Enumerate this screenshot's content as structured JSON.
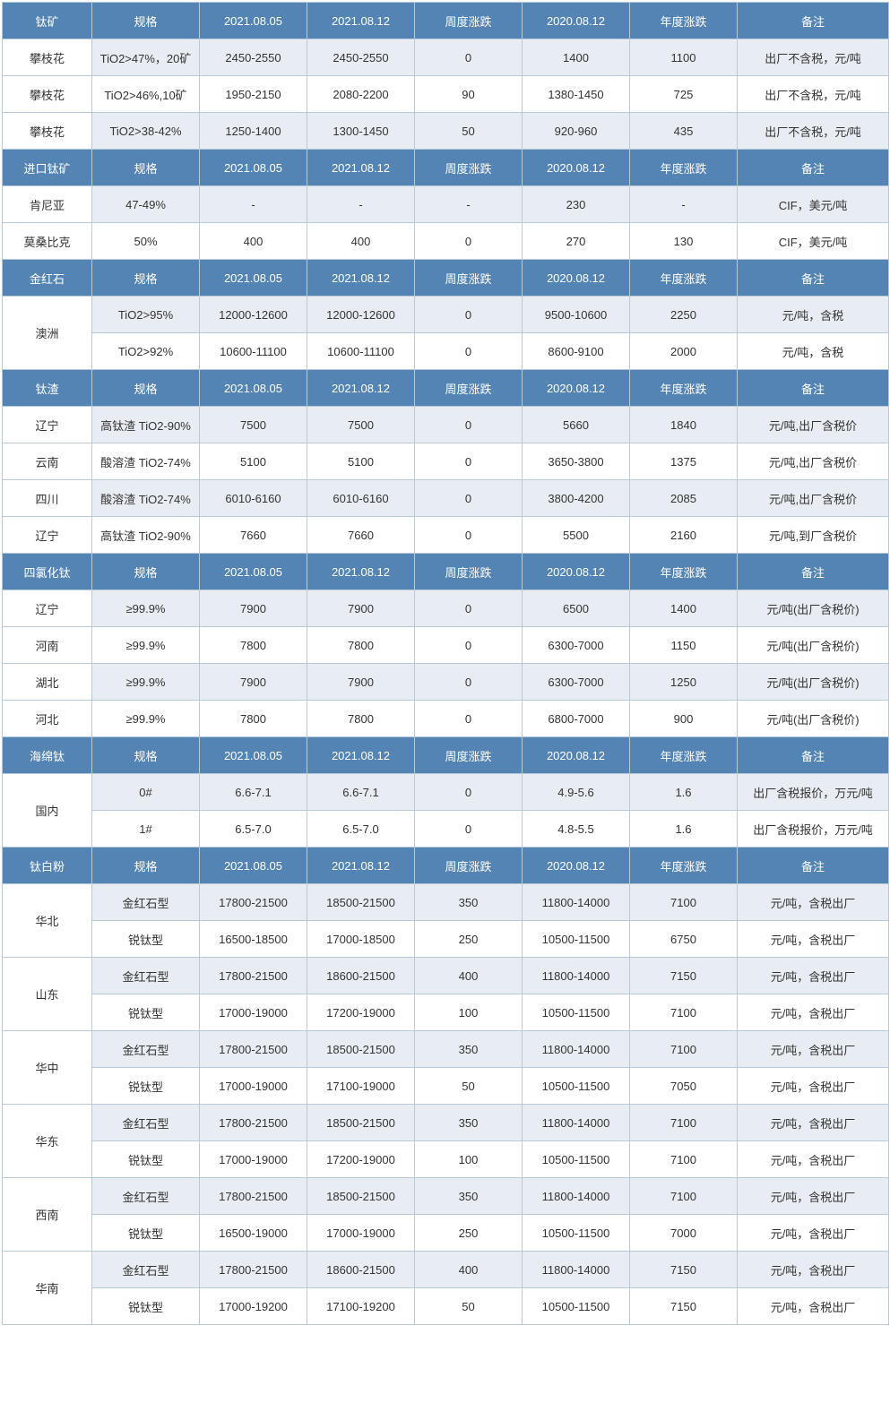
{
  "headers": [
    "规格",
    "2021.08.05",
    "2021.08.12",
    "周度涨跌",
    "2020.08.12",
    "年度涨跌",
    "备注"
  ],
  "sections": [
    {
      "title": "钛矿",
      "rows": [
        {
          "name": "攀枝花",
          "merged": false,
          "cells": [
            "TiO2>47%，20矿",
            "2450-2550",
            "2450-2550",
            "0",
            "1400",
            "1100",
            "出厂不含税，元/吨"
          ],
          "alt": true
        },
        {
          "name": "攀枝花",
          "merged": false,
          "cells": [
            "TiO2>46%,10矿",
            "1950-2150",
            "2080-2200",
            "90",
            "1380-1450",
            "725",
            "出厂不含税，元/吨"
          ],
          "alt": false
        },
        {
          "name": "攀枝花",
          "merged": false,
          "cells": [
            "TiO2>38-42%",
            "1250-1400",
            "1300-1450",
            "50",
            "920-960",
            "435",
            "出厂不含税，元/吨"
          ],
          "alt": true
        }
      ]
    },
    {
      "title": "进口钛矿",
      "rows": [
        {
          "name": "肯尼亚",
          "merged": false,
          "cells": [
            "47-49%",
            "-",
            "-",
            "-",
            "230",
            "-",
            "CIF，美元/吨"
          ],
          "alt": true
        },
        {
          "name": "莫桑比克",
          "merged": false,
          "cells": [
            "50%",
            "400",
            "400",
            "0",
            "270",
            "130",
            "CIF，美元/吨"
          ],
          "alt": false
        }
      ]
    },
    {
      "title": "金红石",
      "rows": [
        {
          "name": "澳洲",
          "merged": true,
          "span": 2,
          "cells": [
            "TiO2>95%",
            "12000-12600",
            "12000-12600",
            "0",
            "9500-10600",
            "2250",
            "元/吨，含税"
          ],
          "alt": true
        },
        {
          "name": "",
          "merged": false,
          "cells": [
            "TiO2>92%",
            "10600-11100",
            "10600-11100",
            "0",
            "8600-9100",
            "2000",
            "元/吨，含税"
          ],
          "alt": false,
          "skip_first": true
        }
      ]
    },
    {
      "title": "钛渣",
      "rows": [
        {
          "name": "辽宁",
          "merged": false,
          "cells": [
            "高钛渣 TiO2-90%",
            "7500",
            "7500",
            "0",
            "5660",
            "1840",
            "元/吨,出厂含税价"
          ],
          "alt": true
        },
        {
          "name": "云南",
          "merged": false,
          "cells": [
            "酸溶渣 TiO2-74%",
            "5100",
            "5100",
            "0",
            "3650-3800",
            "1375",
            "元/吨,出厂含税价"
          ],
          "alt": false
        },
        {
          "name": "四川",
          "merged": false,
          "cells": [
            "酸溶渣 TiO2-74%",
            "6010-6160",
            "6010-6160",
            "0",
            "3800-4200",
            "2085",
            "元/吨,出厂含税价"
          ],
          "alt": true
        },
        {
          "name": "辽宁",
          "merged": false,
          "cells": [
            "高钛渣 TiO2-90%",
            "7660",
            "7660",
            "0",
            "5500",
            "2160",
            "元/吨,到厂含税价"
          ],
          "alt": false
        }
      ]
    },
    {
      "title": "四氯化钛",
      "rows": [
        {
          "name": "辽宁",
          "merged": false,
          "cells": [
            "≥99.9%",
            "7900",
            "7900",
            "0",
            "6500",
            "1400",
            "元/吨(出厂含税价)"
          ],
          "alt": true
        },
        {
          "name": "河南",
          "merged": false,
          "cells": [
            "≥99.9%",
            "7800",
            "7800",
            "0",
            "6300-7000",
            "1150",
            "元/吨(出厂含税价)"
          ],
          "alt": false
        },
        {
          "name": "湖北",
          "merged": false,
          "cells": [
            "≥99.9%",
            "7900",
            "7900",
            "0",
            "6300-7000",
            "1250",
            "元/吨(出厂含税价)"
          ],
          "alt": true
        },
        {
          "name": "河北",
          "merged": false,
          "cells": [
            "≥99.9%",
            "7800",
            "7800",
            "0",
            "6800-7000",
            "900",
            "元/吨(出厂含税价)"
          ],
          "alt": false
        }
      ]
    },
    {
      "title": "海绵钛",
      "rows": [
        {
          "name": "国内",
          "merged": true,
          "span": 2,
          "cells": [
            "0#",
            "6.6-7.1",
            "6.6-7.1",
            "0",
            "4.9-5.6",
            "1.6",
            "出厂含税报价，万元/吨"
          ],
          "alt": true
        },
        {
          "name": "",
          "merged": false,
          "cells": [
            "1#",
            "6.5-7.0",
            "6.5-7.0",
            "0",
            "4.8-5.5",
            "1.6",
            "出厂含税报价，万元/吨"
          ],
          "alt": false,
          "skip_first": true
        }
      ]
    },
    {
      "title": "钛白粉",
      "rows": [
        {
          "name": "华北",
          "merged": true,
          "span": 2,
          "cells": [
            "金红石型",
            "17800-21500",
            "18500-21500",
            "350",
            "11800-14000",
            "7100",
            "元/吨，含税出厂"
          ],
          "alt": true
        },
        {
          "name": "",
          "merged": false,
          "cells": [
            "锐钛型",
            "16500-18500",
            "17000-18500",
            "250",
            "10500-11500",
            "6750",
            "元/吨，含税出厂"
          ],
          "alt": false,
          "skip_first": true
        },
        {
          "name": "山东",
          "merged": true,
          "span": 2,
          "cells": [
            "金红石型",
            "17800-21500",
            "18600-21500",
            "400",
            "11800-14000",
            "7150",
            "元/吨，含税出厂"
          ],
          "alt": true
        },
        {
          "name": "",
          "merged": false,
          "cells": [
            "锐钛型",
            "17000-19000",
            "17200-19000",
            "100",
            "10500-11500",
            "7100",
            "元/吨，含税出厂"
          ],
          "alt": false,
          "skip_first": true
        },
        {
          "name": "华中",
          "merged": true,
          "span": 2,
          "cells": [
            "金红石型",
            "17800-21500",
            "18500-21500",
            "350",
            "11800-14000",
            "7100",
            "元/吨，含税出厂"
          ],
          "alt": true
        },
        {
          "name": "",
          "merged": false,
          "cells": [
            "锐钛型",
            "17000-19000",
            "17100-19000",
            "50",
            "10500-11500",
            "7050",
            "元/吨，含税出厂"
          ],
          "alt": false,
          "skip_first": true
        },
        {
          "name": "华东",
          "merged": true,
          "span": 2,
          "cells": [
            "金红石型",
            "17800-21500",
            "18500-21500",
            "350",
            "11800-14000",
            "7100",
            "元/吨，含税出厂"
          ],
          "alt": true
        },
        {
          "name": "",
          "merged": false,
          "cells": [
            "锐钛型",
            "17000-19000",
            "17200-19000",
            "100",
            "10500-11500",
            "7100",
            "元/吨，含税出厂"
          ],
          "alt": false,
          "skip_first": true
        },
        {
          "name": "西南",
          "merged": true,
          "span": 2,
          "cells": [
            "金红石型",
            "17800-21500",
            "18500-21500",
            "350",
            "11800-14000",
            "7100",
            "元/吨，含税出厂"
          ],
          "alt": true
        },
        {
          "name": "",
          "merged": false,
          "cells": [
            "锐钛型",
            "16500-19000",
            "17000-19000",
            "250",
            "10500-11500",
            "7000",
            "元/吨，含税出厂"
          ],
          "alt": false,
          "skip_first": true
        },
        {
          "name": "华南",
          "merged": true,
          "span": 2,
          "cells": [
            "金红石型",
            "17800-21500",
            "18600-21500",
            "400",
            "11800-14000",
            "7150",
            "元/吨，含税出厂"
          ],
          "alt": true
        },
        {
          "name": "",
          "merged": false,
          "cells": [
            "锐钛型",
            "17000-19200",
            "17100-19200",
            "50",
            "10500-11500",
            "7150",
            "元/吨，含税出厂"
          ],
          "alt": false,
          "skip_first": true
        }
      ]
    }
  ],
  "colors": {
    "header_bg": "#5484b4",
    "header_fg": "#ffffff",
    "alt_bg": "#e8edf4",
    "border": "#b8c9d8"
  }
}
